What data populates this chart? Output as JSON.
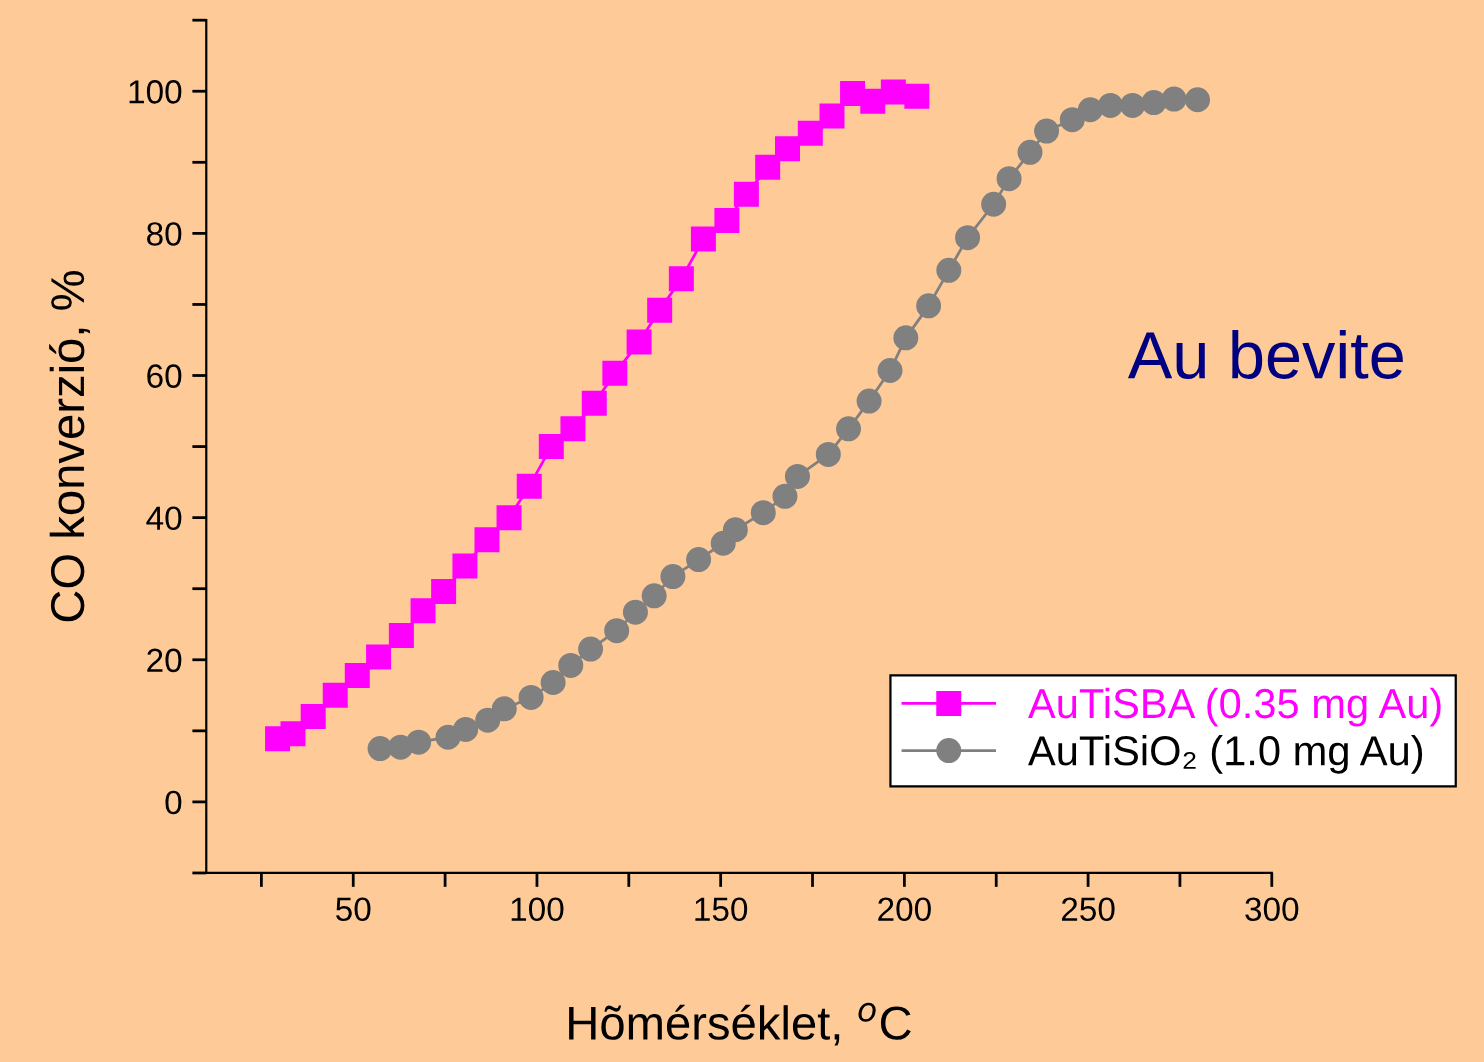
{
  "chart_data": {
    "type": "line",
    "title": "Au bevite",
    "xlabel": "Hõmérséklet, $^{o}$C",
    "ylabel": "CO konverzió, %",
    "xlim": [
      10,
      300
    ],
    "xticks": [
      50,
      100,
      150,
      200,
      250,
      300
    ],
    "ylim": [
      -10,
      110
    ],
    "yticks": [
      0,
      20,
      40,
      60,
      80,
      100
    ],
    "grid": false,
    "legend": "bottom right",
    "line_style": "solid",
    "series": [
      {
        "name": "AuTiSBA (0.35 mg Au)",
        "color": "#ff00ff",
        "marker": "square",
        "x": [
          29.4,
          33.6,
          39.1,
          45.1,
          51.1,
          56.9,
          63.1,
          69.0,
          74.6,
          80.4,
          86.4,
          92.4,
          97.9,
          103.9,
          109.8,
          115.6,
          121.2,
          127.8,
          133.4,
          139.3,
          145.3,
          151.7,
          157.0,
          162.8,
          168.2,
          174.4,
          180.3,
          185.9,
          191.4,
          197.0,
          203.4
        ],
        "values": [
          8.9,
          9.6,
          12.0,
          15.0,
          17.8,
          20.4,
          23.4,
          26.9,
          29.6,
          33.2,
          36.9,
          40.0,
          44.4,
          50.0,
          52.5,
          56.1,
          60.3,
          64.7,
          69.2,
          73.6,
          79.2,
          81.8,
          85.5,
          89.3,
          91.9,
          94.1,
          96.5,
          99.7,
          98.6,
          99.9,
          99.3
        ]
      },
      {
        "name": "AuTiSiO₂ (1.0 mg Au)",
        "color": "#808080",
        "marker": "circle",
        "x": [
          57.3,
          62.9,
          67.8,
          75.8,
          80.6,
          86.6,
          91.1,
          98.4,
          104.4,
          109.2,
          114.6,
          121.7,
          126.8,
          131.9,
          137.0,
          144.0,
          150.7,
          154.0,
          161.6,
          167.5,
          170.9,
          179.3,
          184.8,
          190.4,
          196.1,
          200.4,
          206.6,
          212.1,
          217.2,
          224.3,
          228.5,
          234.2,
          238.7,
          245.7,
          250.6,
          256.1,
          262.1,
          267.9,
          273.4,
          279.8
        ],
        "values": [
          7.5,
          7.7,
          8.4,
          9.1,
          10.2,
          11.5,
          13.1,
          14.7,
          16.8,
          19.2,
          21.5,
          24.1,
          26.7,
          29.0,
          31.7,
          34.1,
          36.4,
          38.3,
          40.7,
          43.0,
          45.8,
          48.9,
          52.5,
          56.4,
          60.7,
          65.3,
          69.8,
          74.8,
          79.4,
          84.1,
          87.7,
          91.4,
          94.4,
          96.0,
          97.4,
          98.0,
          98.0,
          98.4,
          98.9,
          98.8
        ]
      }
    ]
  }
}
